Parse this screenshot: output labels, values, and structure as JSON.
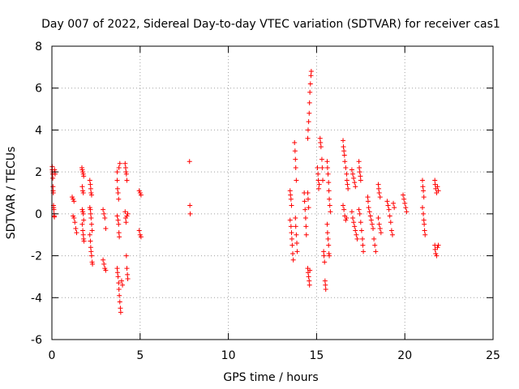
{
  "chart_data": {
    "type": "scatter",
    "title": "Day 007 of 2022, Sidereal Day-to-day VTEC variation (SDTVAR) for receiver cas1",
    "xlabel": "GPS time / hours",
    "ylabel": "SDTVAR / TECUs",
    "xlim": [
      0,
      25
    ],
    "ylim": [
      -6,
      8
    ],
    "xticks": [
      0,
      5,
      10,
      15,
      20,
      25
    ],
    "yticks": [
      -6,
      -4,
      -2,
      0,
      2,
      4,
      6,
      8
    ],
    "xtick_labels": [
      "0",
      "5",
      "10",
      "15",
      "20",
      "25"
    ],
    "ytick_labels": [
      "-6",
      "-4",
      "-2",
      "0",
      "2",
      "4",
      "6",
      "8"
    ],
    "grid": true,
    "marker": "+",
    "color": "#ff0000",
    "series": [
      {
        "name": "SDTVAR",
        "points": [
          [
            0.02,
            2.25
          ],
          [
            0.02,
            2.1
          ],
          [
            0.03,
            2.0
          ],
          [
            0.04,
            1.9
          ],
          [
            0.05,
            1.7
          ],
          [
            0.06,
            1.3
          ],
          [
            0.07,
            1.1
          ],
          [
            0.08,
            1.0
          ],
          [
            0.09,
            0.4
          ],
          [
            0.1,
            0.3
          ],
          [
            0.11,
            0.2
          ],
          [
            0.12,
            0.0
          ],
          [
            0.13,
            -0.1
          ],
          [
            0.14,
            -0.15
          ],
          [
            0.15,
            2.1
          ],
          [
            0.17,
            2.0
          ],
          [
            0.18,
            1.9
          ],
          [
            1.15,
            0.8
          ],
          [
            1.2,
            0.7
          ],
          [
            1.25,
            0.6
          ],
          [
            1.2,
            -0.1
          ],
          [
            1.25,
            -0.2
          ],
          [
            1.3,
            -0.4
          ],
          [
            1.35,
            -0.7
          ],
          [
            1.4,
            -0.9
          ],
          [
            1.7,
            2.2
          ],
          [
            1.72,
            2.1
          ],
          [
            1.75,
            2.0
          ],
          [
            1.78,
            1.9
          ],
          [
            1.8,
            1.8
          ],
          [
            1.72,
            1.3
          ],
          [
            1.75,
            1.1
          ],
          [
            1.78,
            1.0
          ],
          [
            1.72,
            0.2
          ],
          [
            1.75,
            0.1
          ],
          [
            1.78,
            0.0
          ],
          [
            1.8,
            -0.3
          ],
          [
            1.72,
            -0.5
          ],
          [
            1.75,
            -0.8
          ],
          [
            1.78,
            -1.0
          ],
          [
            1.8,
            -1.2
          ],
          [
            1.82,
            -1.3
          ],
          [
            2.15,
            1.6
          ],
          [
            2.18,
            1.4
          ],
          [
            2.2,
            1.2
          ],
          [
            2.22,
            1.0
          ],
          [
            2.25,
            0.9
          ],
          [
            2.15,
            0.3
          ],
          [
            2.18,
            0.2
          ],
          [
            2.2,
            0.0
          ],
          [
            2.22,
            -0.2
          ],
          [
            2.25,
            -0.5
          ],
          [
            2.28,
            -0.8
          ],
          [
            2.15,
            -1.0
          ],
          [
            2.18,
            -1.3
          ],
          [
            2.2,
            -1.6
          ],
          [
            2.22,
            -1.8
          ],
          [
            2.25,
            -2.0
          ],
          [
            2.28,
            -2.3
          ],
          [
            2.3,
            -2.4
          ],
          [
            2.9,
            0.2
          ],
          [
            2.95,
            0.0
          ],
          [
            3.0,
            -0.2
          ],
          [
            3.05,
            -0.7
          ],
          [
            2.9,
            -2.2
          ],
          [
            2.95,
            -2.4
          ],
          [
            3.0,
            -2.6
          ],
          [
            3.05,
            -2.7
          ],
          [
            3.7,
            1.6
          ],
          [
            3.72,
            1.2
          ],
          [
            3.75,
            1.0
          ],
          [
            3.78,
            0.7
          ],
          [
            3.7,
            2.0
          ],
          [
            3.8,
            2.2
          ],
          [
            3.85,
            2.4
          ],
          [
            3.7,
            -0.1
          ],
          [
            3.75,
            -0.3
          ],
          [
            3.78,
            -0.5
          ],
          [
            3.8,
            -0.9
          ],
          [
            3.82,
            -1.1
          ],
          [
            3.7,
            -2.6
          ],
          [
            3.72,
            -2.8
          ],
          [
            3.75,
            -3.0
          ],
          [
            3.78,
            -3.3
          ],
          [
            3.8,
            -3.6
          ],
          [
            3.82,
            -3.9
          ],
          [
            3.85,
            -4.2
          ],
          [
            3.88,
            -4.5
          ],
          [
            3.9,
            -4.7
          ],
          [
            3.95,
            -3.2
          ],
          [
            4.0,
            -3.4
          ],
          [
            4.15,
            2.4
          ],
          [
            4.18,
            2.2
          ],
          [
            4.2,
            2.0
          ],
          [
            4.22,
            1.9
          ],
          [
            4.25,
            1.6
          ],
          [
            4.15,
            0.1
          ],
          [
            4.18,
            -0.2
          ],
          [
            4.2,
            -0.4
          ],
          [
            4.22,
            -2.0
          ],
          [
            4.25,
            -2.6
          ],
          [
            4.28,
            -2.9
          ],
          [
            4.3,
            -3.1
          ],
          [
            4.25,
            -0.1
          ],
          [
            4.3,
            0.0
          ],
          [
            4.95,
            1.1
          ],
          [
            5.0,
            1.0
          ],
          [
            5.05,
            0.9
          ],
          [
            4.95,
            -0.8
          ],
          [
            5.0,
            -1.0
          ],
          [
            5.05,
            -1.1
          ],
          [
            7.8,
            2.5
          ],
          [
            7.82,
            0.4
          ],
          [
            7.84,
            0.0
          ],
          [
            13.5,
            1.1
          ],
          [
            13.52,
            0.9
          ],
          [
            13.55,
            0.7
          ],
          [
            13.58,
            0.4
          ],
          [
            13.5,
            -0.3
          ],
          [
            13.55,
            -0.6
          ],
          [
            13.58,
            -0.9
          ],
          [
            13.6,
            -1.2
          ],
          [
            13.62,
            -1.5
          ],
          [
            13.65,
            -1.9
          ],
          [
            13.68,
            -2.2
          ],
          [
            13.75,
            3.4
          ],
          [
            13.78,
            3.0
          ],
          [
            13.8,
            2.6
          ],
          [
            13.82,
            2.2
          ],
          [
            13.85,
            1.6
          ],
          [
            13.8,
            -0.2
          ],
          [
            13.82,
            -0.6
          ],
          [
            13.85,
            -1.0
          ],
          [
            13.88,
            -1.4
          ],
          [
            13.9,
            -1.8
          ],
          [
            14.3,
            1.0
          ],
          [
            14.32,
            0.6
          ],
          [
            14.35,
            0.2
          ],
          [
            14.38,
            -0.2
          ],
          [
            14.4,
            -0.6
          ],
          [
            14.42,
            -1.0
          ],
          [
            14.5,
            3.6
          ],
          [
            14.52,
            4.0
          ],
          [
            14.55,
            4.4
          ],
          [
            14.58,
            4.8
          ],
          [
            14.6,
            5.3
          ],
          [
            14.62,
            5.8
          ],
          [
            14.65,
            6.2
          ],
          [
            14.68,
            6.6
          ],
          [
            14.7,
            6.8
          ],
          [
            14.5,
            1.0
          ],
          [
            14.52,
            0.7
          ],
          [
            14.55,
            0.3
          ],
          [
            14.5,
            -2.6
          ],
          [
            14.52,
            -2.8
          ],
          [
            14.55,
            -3.0
          ],
          [
            14.58,
            -3.2
          ],
          [
            14.6,
            -3.4
          ],
          [
            14.62,
            -2.7
          ],
          [
            15.05,
            2.2
          ],
          [
            15.08,
            1.9
          ],
          [
            15.1,
            1.6
          ],
          [
            15.12,
            1.2
          ],
          [
            15.15,
            1.4
          ],
          [
            15.2,
            3.6
          ],
          [
            15.22,
            3.4
          ],
          [
            15.25,
            3.2
          ],
          [
            15.3,
            2.6
          ],
          [
            15.32,
            2.2
          ],
          [
            15.35,
            1.6
          ],
          [
            15.4,
            -1.8
          ],
          [
            15.42,
            -2.0
          ],
          [
            15.45,
            -2.3
          ],
          [
            15.48,
            -3.2
          ],
          [
            15.5,
            -3.4
          ],
          [
            15.52,
            -3.6
          ],
          [
            15.6,
            2.5
          ],
          [
            15.62,
            2.2
          ],
          [
            15.65,
            1.9
          ],
          [
            15.68,
            1.5
          ],
          [
            15.7,
            1.1
          ],
          [
            15.72,
            0.7
          ],
          [
            15.75,
            0.4
          ],
          [
            15.78,
            0.1
          ],
          [
            15.6,
            -0.5
          ],
          [
            15.62,
            -0.9
          ],
          [
            15.65,
            -1.2
          ],
          [
            15.68,
            -1.5
          ],
          [
            15.7,
            -1.9
          ],
          [
            15.72,
            -2.0
          ],
          [
            16.5,
            3.5
          ],
          [
            16.52,
            3.2
          ],
          [
            16.55,
            3.0
          ],
          [
            16.58,
            2.8
          ],
          [
            16.6,
            2.5
          ],
          [
            16.65,
            2.2
          ],
          [
            16.7,
            1.9
          ],
          [
            16.72,
            1.6
          ],
          [
            16.75,
            1.4
          ],
          [
            16.78,
            1.2
          ],
          [
            16.5,
            0.4
          ],
          [
            16.55,
            0.2
          ],
          [
            16.6,
            -0.1
          ],
          [
            16.65,
            -0.3
          ],
          [
            16.7,
            -0.2
          ],
          [
            17.0,
            2.1
          ],
          [
            17.05,
            1.9
          ],
          [
            17.1,
            1.7
          ],
          [
            17.15,
            1.5
          ],
          [
            17.2,
            1.3
          ],
          [
            17.0,
            0.1
          ],
          [
            17.05,
            -0.2
          ],
          [
            17.1,
            -0.4
          ],
          [
            17.15,
            -0.6
          ],
          [
            17.2,
            -0.8
          ],
          [
            17.25,
            -1.0
          ],
          [
            17.3,
            -1.2
          ],
          [
            17.4,
            2.5
          ],
          [
            17.42,
            2.2
          ],
          [
            17.45,
            2.0
          ],
          [
            17.48,
            1.8
          ],
          [
            17.5,
            1.6
          ],
          [
            17.4,
            0.2
          ],
          [
            17.45,
            0.0
          ],
          [
            17.5,
            -0.4
          ],
          [
            17.55,
            -0.8
          ],
          [
            17.6,
            -1.2
          ],
          [
            17.62,
            -1.5
          ],
          [
            17.65,
            -1.8
          ],
          [
            17.9,
            0.8
          ],
          [
            17.92,
            0.6
          ],
          [
            17.95,
            0.3
          ],
          [
            18.0,
            0.1
          ],
          [
            18.05,
            -0.1
          ],
          [
            18.1,
            -0.3
          ],
          [
            18.15,
            -0.5
          ],
          [
            18.2,
            -0.7
          ],
          [
            18.25,
            -1.2
          ],
          [
            18.3,
            -1.5
          ],
          [
            18.35,
            -1.8
          ],
          [
            18.5,
            1.4
          ],
          [
            18.52,
            1.2
          ],
          [
            18.55,
            1.0
          ],
          [
            18.6,
            0.8
          ],
          [
            18.5,
            -0.2
          ],
          [
            18.55,
            -0.5
          ],
          [
            18.6,
            -0.7
          ],
          [
            18.65,
            -0.9
          ],
          [
            19.0,
            0.6
          ],
          [
            19.05,
            0.4
          ],
          [
            19.1,
            0.2
          ],
          [
            19.15,
            -0.1
          ],
          [
            19.2,
            -0.4
          ],
          [
            19.25,
            -0.8
          ],
          [
            19.3,
            -1.0
          ],
          [
            19.35,
            0.5
          ],
          [
            19.4,
            0.3
          ],
          [
            19.9,
            0.9
          ],
          [
            19.95,
            0.7
          ],
          [
            20.0,
            0.5
          ],
          [
            20.05,
            0.3
          ],
          [
            20.1,
            0.1
          ],
          [
            21.0,
            1.6
          ],
          [
            21.02,
            1.3
          ],
          [
            21.05,
            1.1
          ],
          [
            21.08,
            0.8
          ],
          [
            21.0,
            0.3
          ],
          [
            21.05,
            0.0
          ],
          [
            21.08,
            -0.3
          ],
          [
            21.1,
            -0.5
          ],
          [
            21.12,
            -0.8
          ],
          [
            21.15,
            -1.0
          ],
          [
            21.7,
            1.6
          ],
          [
            21.72,
            1.4
          ],
          [
            21.75,
            1.2
          ],
          [
            21.8,
            1.0
          ],
          [
            21.85,
            1.3
          ],
          [
            21.9,
            1.1
          ],
          [
            21.7,
            -1.5
          ],
          [
            21.72,
            -1.7
          ],
          [
            21.75,
            -1.9
          ],
          [
            21.8,
            -2.0
          ],
          [
            21.85,
            -1.6
          ],
          [
            21.9,
            -1.5
          ]
        ]
      }
    ]
  }
}
